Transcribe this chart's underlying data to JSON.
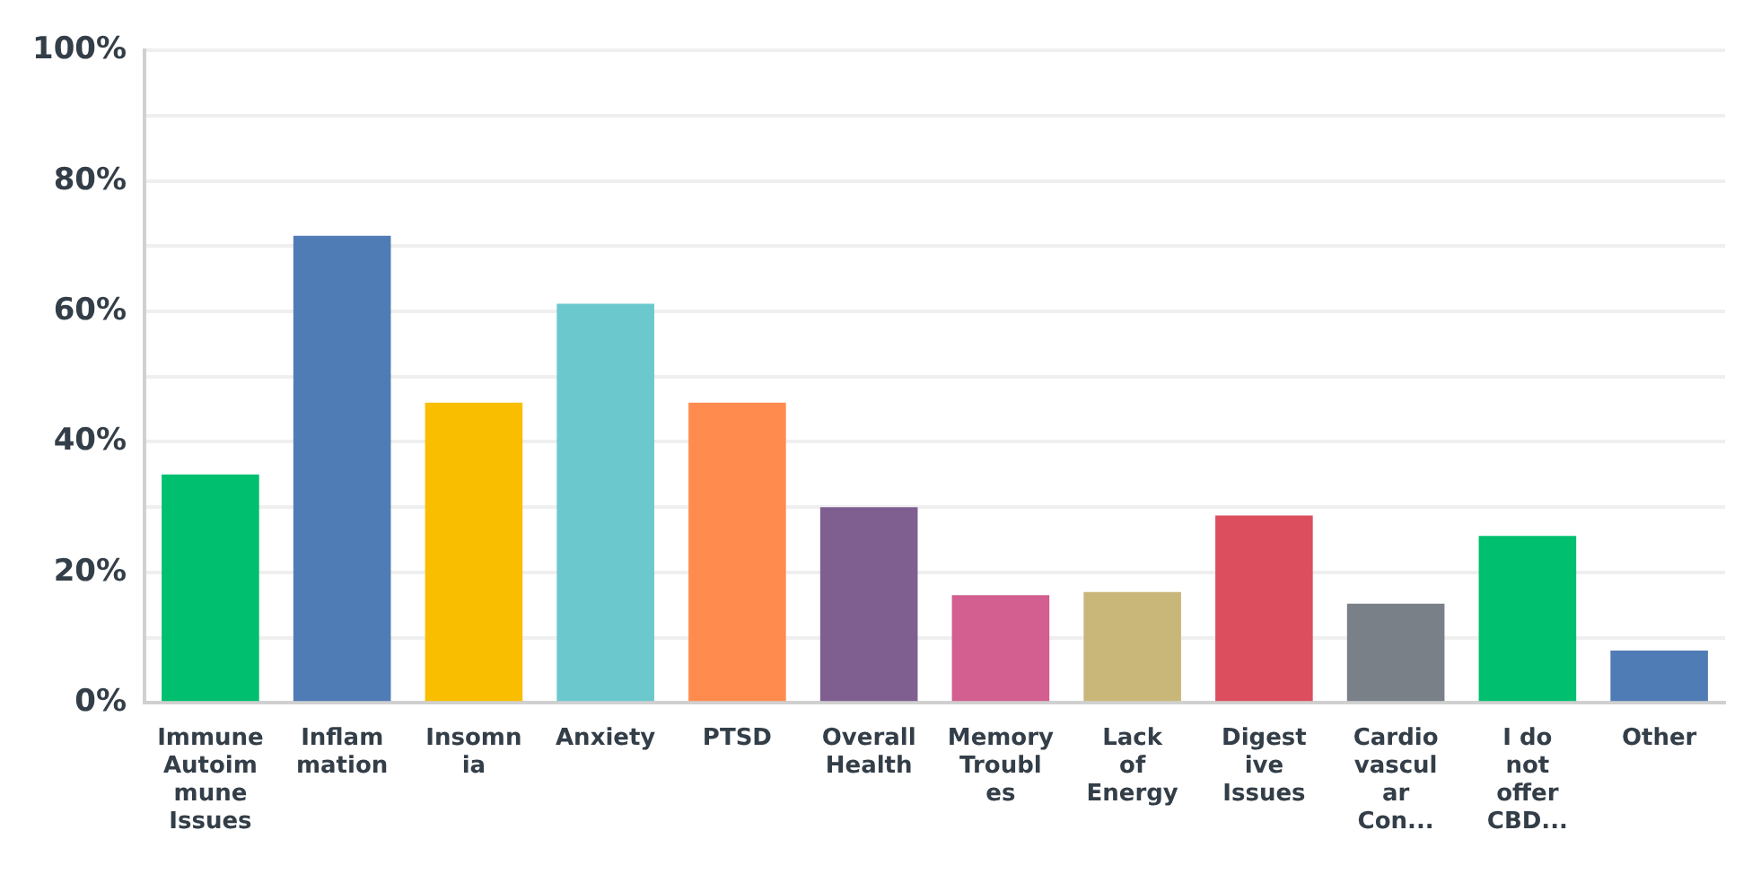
{
  "chart_data": {
    "type": "bar",
    "categories": [
      "Immune Autoimmune Issues",
      "Inflammation",
      "Insomnia",
      "Anxiety",
      "PTSD",
      "Overall Health",
      "Memory Troubles",
      "Lack of Energy",
      "Digestive Issues",
      "Cardiovascular Con...",
      "I do not offer CBD...",
      "Other"
    ],
    "values": [
      35,
      71.6,
      46,
      61.2,
      46,
      30,
      16.5,
      17,
      28.7,
      15.2,
      25.6,
      8
    ],
    "colors": [
      "#00bf6f",
      "#507cb6",
      "#f9be00",
      "#6bc8cd",
      "#ff8b4f",
      "#7f5f90",
      "#d25f90",
      "#c9b77a",
      "#dc4e5e",
      "#7a8088",
      "#00bf6f",
      "#507cb6"
    ],
    "ylim": [
      0,
      100
    ],
    "yticks": [
      {
        "value": 0,
        "label": "0%"
      },
      {
        "value": 10,
        "label": null
      },
      {
        "value": 20,
        "label": "20%"
      },
      {
        "value": 30,
        "label": null
      },
      {
        "value": 40,
        "label": "40%"
      },
      {
        "value": 50,
        "label": null
      },
      {
        "value": 60,
        "label": "60%"
      },
      {
        "value": 70,
        "label": null
      },
      {
        "value": 80,
        "label": "80%"
      },
      {
        "value": 90,
        "label": null
      },
      {
        "value": 100,
        "label": "100%"
      }
    ],
    "grid": "y"
  }
}
